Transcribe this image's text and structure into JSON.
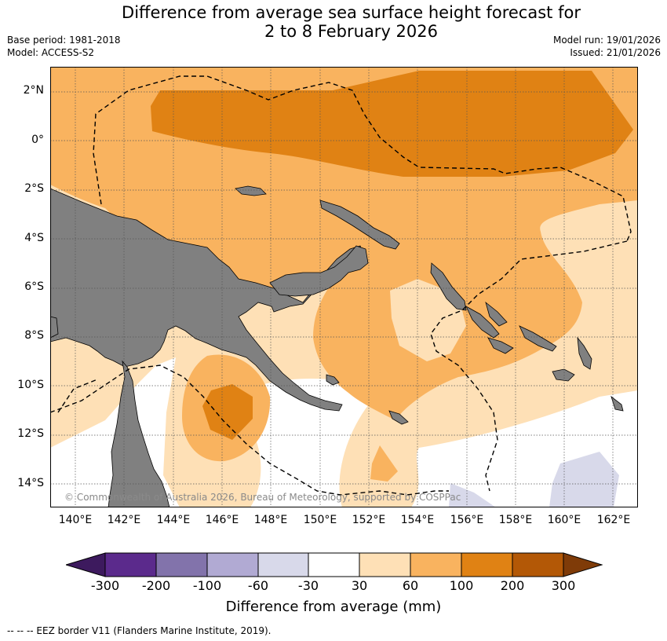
{
  "title": {
    "line1": "Difference from average sea surface height forecast for",
    "line2": "2 to 8 February 2026"
  },
  "meta": {
    "base_period": "Base period: 1981-2018",
    "model": "Model: ACCESS-S2",
    "model_run": "Model run: 19/01/2026",
    "issued": "Issued: 21/01/2026"
  },
  "axes": {
    "lat_labels": [
      "2°N",
      "0°",
      "2°S",
      "4°S",
      "6°S",
      "8°S",
      "10°S",
      "12°S",
      "14°S"
    ],
    "lon_labels": [
      "140°E",
      "142°E",
      "144°E",
      "146°E",
      "148°E",
      "150°E",
      "152°E",
      "154°E",
      "156°E",
      "158°E",
      "160°E",
      "162°E"
    ]
  },
  "colorbar": {
    "ticks": [
      "-300",
      "-200",
      "-100",
      "-60",
      "-30",
      "30",
      "60",
      "100",
      "200",
      "300"
    ],
    "colors": [
      "#3d1a5e",
      "#5b2a8c",
      "#8273ab",
      "#b1aad3",
      "#d8d9ea",
      "#ffffff",
      "#fee0b6",
      "#f9b35f",
      "#e08214",
      "#b35806",
      "#7f3b08"
    ],
    "label": "Difference from average (mm)"
  },
  "map_colors": {
    "land": "#808080",
    "c30_60": "#fee0b6",
    "c60_100": "#f9b35f",
    "c100_200": "#e08214",
    "neg30_60": "#d8d9ea",
    "grid": "#555555"
  },
  "copyright": "© Commonwealth of Australia 2026, Bureau of Meteorology, supported by COSPPac",
  "eez_legend": "--  --  -- EEZ border V11 (Flanders Marine Institute, 2019)."
}
